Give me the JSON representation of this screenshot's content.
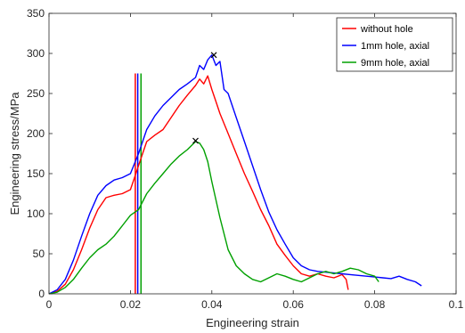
{
  "chart_data": {
    "type": "line",
    "title": "",
    "xlabel": "Engineering strain",
    "ylabel": "Engineering stress/MPa",
    "xlim": [
      0,
      0.1
    ],
    "ylim": [
      0,
      350
    ],
    "xticks": [
      0,
      0.02,
      0.04,
      0.06,
      0.08,
      0.1
    ],
    "xtick_labels": [
      "0",
      "0.02",
      "0.04",
      "0.06",
      "0.08",
      "0.1"
    ],
    "yticks": [
      0,
      50,
      100,
      150,
      200,
      250,
      300,
      350
    ],
    "ytick_labels": [
      "0",
      "50",
      "100",
      "150",
      "200",
      "250",
      "300",
      "350"
    ],
    "grid": false,
    "legend_position": "top-right",
    "series": [
      {
        "name": "without hole",
        "color": "#ff0000",
        "x": [
          0,
          0.002,
          0.004,
          0.006,
          0.008,
          0.01,
          0.012,
          0.014,
          0.016,
          0.018,
          0.02,
          0.021,
          0.022,
          0.024,
          0.026,
          0.028,
          0.03,
          0.032,
          0.034,
          0.036,
          0.037,
          0.038,
          0.039,
          0.04,
          0.041,
          0.042,
          0.044,
          0.046,
          0.048,
          0.05,
          0.052,
          0.054,
          0.056,
          0.058,
          0.06,
          0.062,
          0.064,
          0.066,
          0.068,
          0.07,
          0.072,
          0.073,
          0.0735
        ],
        "y": [
          0,
          3,
          12,
          30,
          55,
          82,
          105,
          120,
          123,
          125,
          130,
          145,
          160,
          190,
          198,
          205,
          220,
          235,
          248,
          260,
          268,
          262,
          272,
          255,
          240,
          225,
          200,
          175,
          150,
          128,
          105,
          85,
          62,
          48,
          35,
          25,
          22,
          25,
          22,
          20,
          24,
          18,
          5
        ]
      },
      {
        "name": "1mm hole, axial",
        "color": "#0000ff",
        "x": [
          0,
          0.002,
          0.004,
          0.006,
          0.008,
          0.01,
          0.012,
          0.014,
          0.016,
          0.018,
          0.02,
          0.022,
          0.024,
          0.026,
          0.028,
          0.03,
          0.032,
          0.034,
          0.036,
          0.037,
          0.038,
          0.039,
          0.04,
          0.041,
          0.042,
          0.043,
          0.044,
          0.046,
          0.048,
          0.05,
          0.052,
          0.054,
          0.056,
          0.058,
          0.06,
          0.062,
          0.064,
          0.066,
          0.068,
          0.07,
          0.072,
          0.074,
          0.076,
          0.078,
          0.08,
          0.082,
          0.084,
          0.086,
          0.088,
          0.09,
          0.0915
        ],
        "y": [
          0,
          5,
          18,
          42,
          72,
          100,
          123,
          135,
          142,
          145,
          150,
          175,
          205,
          222,
          235,
          245,
          255,
          262,
          270,
          285,
          280,
          292,
          298,
          285,
          290,
          255,
          250,
          220,
          190,
          160,
          130,
          102,
          80,
          62,
          45,
          35,
          30,
          28,
          27,
          26,
          25,
          24,
          23,
          22,
          21,
          20,
          19,
          22,
          18,
          15,
          10
        ]
      },
      {
        "name": "9mm hole, axial",
        "color": "#00a000",
        "x": [
          0,
          0.002,
          0.004,
          0.006,
          0.008,
          0.01,
          0.012,
          0.014,
          0.016,
          0.018,
          0.02,
          0.022,
          0.024,
          0.026,
          0.028,
          0.03,
          0.032,
          0.034,
          0.036,
          0.037,
          0.038,
          0.039,
          0.04,
          0.042,
          0.044,
          0.046,
          0.048,
          0.05,
          0.052,
          0.054,
          0.056,
          0.058,
          0.06,
          0.062,
          0.064,
          0.066,
          0.068,
          0.07,
          0.072,
          0.074,
          0.076,
          0.078,
          0.08,
          0.081
        ],
        "y": [
          0,
          2,
          8,
          18,
          32,
          45,
          55,
          62,
          72,
          85,
          98,
          105,
          125,
          138,
          150,
          162,
          172,
          180,
          190,
          188,
          180,
          165,
          140,
          95,
          55,
          35,
          25,
          18,
          15,
          20,
          25,
          22,
          18,
          15,
          20,
          25,
          28,
          25,
          28,
          32,
          30,
          25,
          22,
          15
        ]
      }
    ],
    "vertical_markers": [
      {
        "x": 0.0212,
        "top": 275,
        "color": "#ff0000"
      },
      {
        "x": 0.0218,
        "top": 275,
        "color": "#0000ff"
      },
      {
        "x": 0.0226,
        "top": 275,
        "color": "#00a000"
      }
    ],
    "peak_markers": [
      {
        "x": 0.0405,
        "y": 298,
        "symbol": "x",
        "color": "#000000"
      },
      {
        "x": 0.036,
        "y": 191,
        "symbol": "x",
        "color": "#000000"
      }
    ]
  }
}
